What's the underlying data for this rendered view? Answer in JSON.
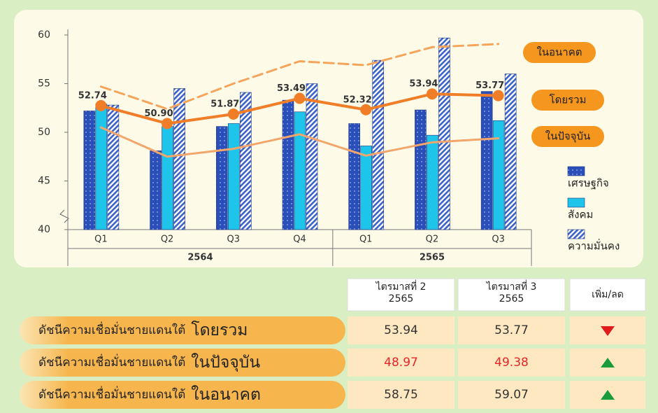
{
  "chart_data": {
    "type": "bar",
    "groups": [
      {
        "label": "2564",
        "categories": [
          "Q1",
          "Q2",
          "Q3",
          "Q4"
        ]
      },
      {
        "label": "2565",
        "categories": [
          "Q1",
          "Q2",
          "Q3"
        ]
      }
    ],
    "ylim": [
      40,
      60
    ],
    "yticks": [
      40,
      45,
      50,
      55,
      60
    ],
    "series": [
      {
        "name": "เศรษฐกิจ",
        "color": "#2b4fb8",
        "pattern": "dots",
        "values": [
          52.2,
          48.1,
          50.6,
          53.3,
          50.9,
          52.3,
          54.2
        ]
      },
      {
        "name": "สังคม",
        "color": "#1fc4ea",
        "pattern": "solid",
        "values": [
          52.9,
          50.6,
          50.9,
          52.1,
          48.6,
          49.7,
          51.2
        ]
      },
      {
        "name": "ความมั่นคง",
        "color": "#3a62c9",
        "pattern": "hatch",
        "values": [
          52.8,
          54.5,
          54.1,
          55.0,
          57.4,
          59.7,
          56.0
        ]
      }
    ],
    "lines": [
      {
        "name": "ในอนาคต",
        "color": "#f5a45c",
        "dashed": true,
        "values": [
          54.7,
          52.4,
          55.0,
          57.3,
          56.9,
          58.75,
          59.07
        ]
      },
      {
        "name": "โดยรวม",
        "color": "#f07e28",
        "markers": true,
        "values": [
          52.74,
          50.9,
          51.87,
          53.49,
          52.32,
          53.94,
          53.77
        ],
        "value_labels": [
          "52.74",
          "50.90",
          "51.87",
          "53.49",
          "52.32",
          "53.94",
          "53.77"
        ]
      },
      {
        "name": "ในปัจจุบัน",
        "color": "#f3a66c",
        "values": [
          50.5,
          47.5,
          48.3,
          49.8,
          47.6,
          48.97,
          49.38
        ]
      }
    ]
  },
  "table": {
    "headers": [
      [
        "ไตรมาสที่ 2",
        "2565"
      ],
      [
        "ไตรมาสที่ 3",
        "2565"
      ],
      [
        "เพิ่ม/ลด"
      ]
    ],
    "rows": [
      {
        "prefix": "ดัชนีความเชื่อมั่นชายแดนใต้",
        "name": "โดยรวม",
        "q2": 53.94,
        "q3": 53.77,
        "trend": "down",
        "value_color": "#333333"
      },
      {
        "prefix": "ดัชนีความเชื่อมั่นชายแดนใต้",
        "name": "ในปัจจุบัน",
        "q2": 48.97,
        "q3": 49.38,
        "trend": "up",
        "value_color": "#e8262a"
      },
      {
        "prefix": "ดัชนีความเชื่อมั่นชายแดนใต้",
        "name": "ในอนาคต",
        "q2": 58.75,
        "q3": 59.07,
        "trend": "up",
        "value_color": "#333333"
      }
    ]
  }
}
